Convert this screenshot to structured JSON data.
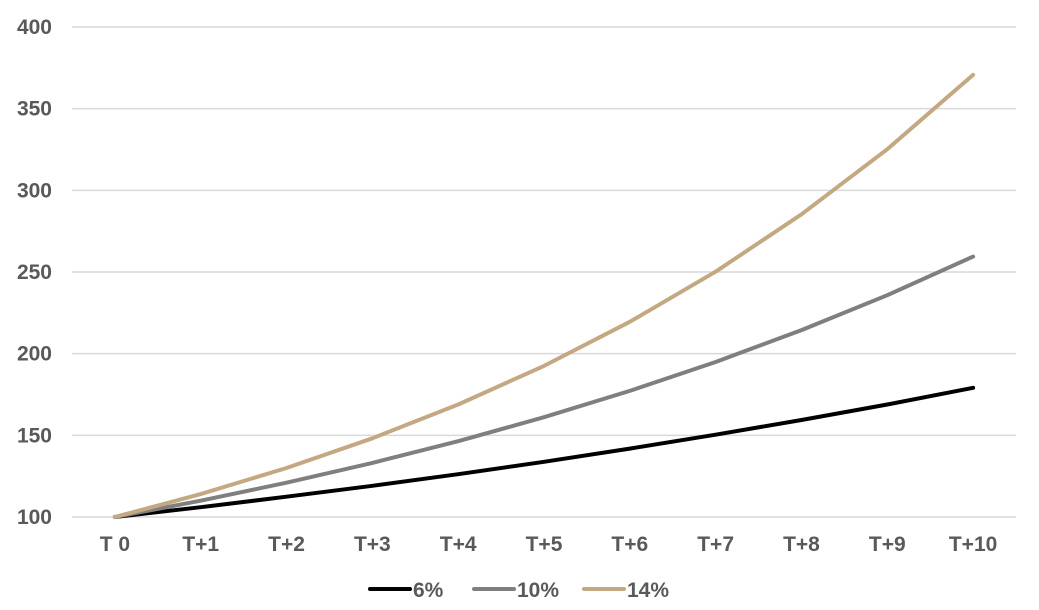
{
  "chart_data": {
    "type": "line",
    "categories": [
      "T 0",
      "T+1",
      "T+2",
      "T+3",
      "T+4",
      "T+5",
      "T+6",
      "T+7",
      "T+8",
      "T+9",
      "T+10"
    ],
    "series": [
      {
        "name": "6%",
        "color": "#000000",
        "values": [
          100,
          106,
          112.4,
          119.1,
          126.2,
          133.8,
          141.9,
          150.4,
          159.4,
          168.9,
          179.1
        ]
      },
      {
        "name": "10%",
        "color": "#7f7f7f",
        "values": [
          100,
          110,
          121,
          133.1,
          146.4,
          161.1,
          177.2,
          194.9,
          214.4,
          235.8,
          259.4
        ]
      },
      {
        "name": "14%",
        "color": "#c4a882",
        "values": [
          100,
          114,
          130,
          148.2,
          168.9,
          192.5,
          219.5,
          250.2,
          285.3,
          325.2,
          370.7
        ]
      }
    ],
    "yticks": [
      "100",
      "150",
      "200",
      "250",
      "300",
      "350",
      "400"
    ],
    "ylim": [
      100,
      400
    ],
    "grid": true,
    "legend": "bottom"
  }
}
